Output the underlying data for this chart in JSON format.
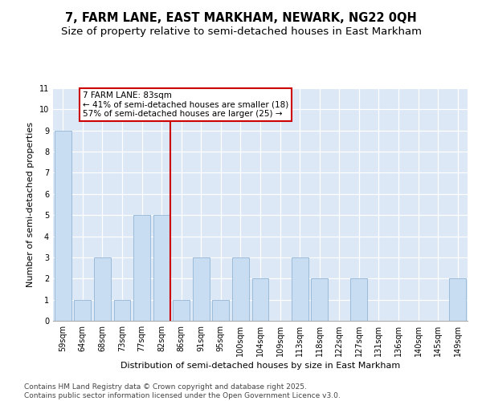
{
  "title": "7, FARM LANE, EAST MARKHAM, NEWARK, NG22 0QH",
  "subtitle": "Size of property relative to semi-detached houses in East Markham",
  "xlabel": "Distribution of semi-detached houses by size in East Markham",
  "ylabel": "Number of semi-detached properties",
  "categories": [
    "59sqm",
    "64sqm",
    "68sqm",
    "73sqm",
    "77sqm",
    "82sqm",
    "86sqm",
    "91sqm",
    "95sqm",
    "100sqm",
    "104sqm",
    "109sqm",
    "113sqm",
    "118sqm",
    "122sqm",
    "127sqm",
    "131sqm",
    "136sqm",
    "140sqm",
    "145sqm",
    "149sqm"
  ],
  "values": [
    9,
    1,
    3,
    1,
    5,
    5,
    1,
    3,
    1,
    3,
    2,
    0,
    3,
    2,
    0,
    2,
    0,
    0,
    0,
    0,
    2
  ],
  "bar_color": "#c9ddf2",
  "bar_edge_color": "#9bbcda",
  "vline_x_index": 5,
  "vline_color": "#cc0000",
  "annotation_text": "7 FARM LANE: 83sqm\n← 41% of semi-detached houses are smaller (18)\n57% of semi-detached houses are larger (25) →",
  "annotation_box_color": "#cc0000",
  "ylim": [
    0,
    11
  ],
  "yticks": [
    0,
    1,
    2,
    3,
    4,
    5,
    6,
    7,
    8,
    9,
    10,
    11
  ],
  "background_color": "#dce8f5",
  "footer_text": "Contains HM Land Registry data © Crown copyright and database right 2025.\nContains public sector information licensed under the Open Government Licence v3.0.",
  "title_fontsize": 10.5,
  "subtitle_fontsize": 9.5,
  "axis_label_fontsize": 8,
  "tick_fontsize": 7,
  "annotation_fontsize": 7.5,
  "footer_fontsize": 6.5
}
